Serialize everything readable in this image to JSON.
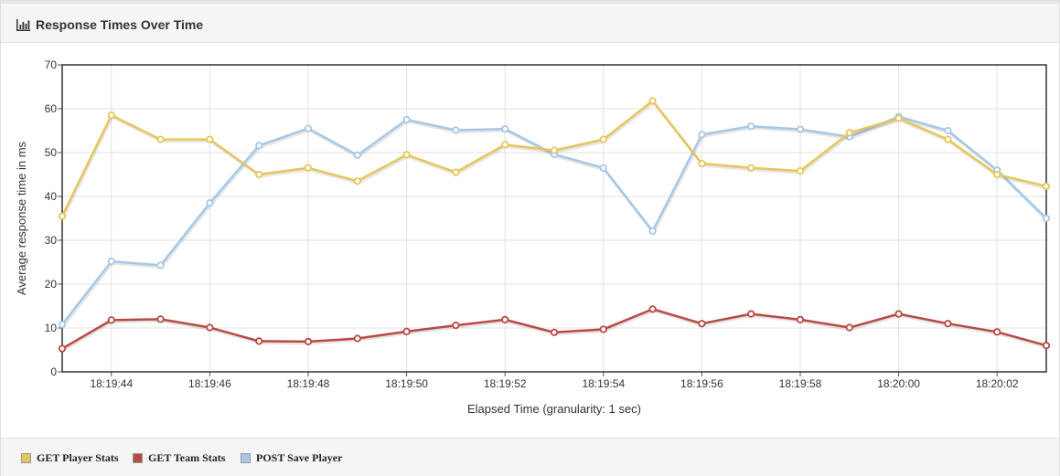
{
  "panel": {
    "title": "Response Times Over Time",
    "icon": "bar-chart-icon"
  },
  "chart_data": {
    "type": "line",
    "title": "Response Times Over Time",
    "xlabel": "Elapsed Time (granularity: 1 sec)",
    "ylabel": "Average response time in ms",
    "ylim": [
      0,
      70
    ],
    "yticks": [
      0,
      10,
      20,
      30,
      40,
      50,
      60,
      70
    ],
    "x": [
      "18:19:43",
      "18:19:44",
      "18:19:45",
      "18:19:46",
      "18:19:47",
      "18:19:48",
      "18:19:49",
      "18:19:50",
      "18:19:51",
      "18:19:52",
      "18:19:53",
      "18:19:54",
      "18:19:55",
      "18:19:56",
      "18:19:57",
      "18:19:58",
      "18:19:59",
      "18:20:00",
      "18:20:01",
      "18:20:02",
      "18:20:03"
    ],
    "xtick_labels": [
      "18:19:44",
      "18:19:46",
      "18:19:48",
      "18:19:50",
      "18:19:52",
      "18:19:54",
      "18:19:56",
      "18:19:58",
      "18:20:00",
      "18:20:02"
    ],
    "grid": true,
    "legend_position": "bottom",
    "series": [
      {
        "name": "GET Player Stats",
        "color": "#e6c65a",
        "values": [
          35.5,
          58.5,
          53,
          53,
          45,
          46.5,
          43.5,
          49.5,
          45.5,
          51.8,
          50.5,
          53,
          61.8,
          47.5,
          46.5,
          45.8,
          54.5,
          57.8,
          53,
          45,
          42.3
        ]
      },
      {
        "name": "GET Team Stats",
        "color": "#b84a44",
        "values": [
          5.3,
          11.8,
          12,
          10.1,
          7,
          6.9,
          7.6,
          9.2,
          10.6,
          11.9,
          9,
          9.7,
          14.3,
          11,
          13.2,
          11.9,
          10.1,
          13.2,
          11,
          9.1,
          6
        ]
      },
      {
        "name": "POST Save Player",
        "color": "#a6c8e6",
        "values": [
          10.8,
          25.2,
          24.3,
          38.5,
          51.6,
          55.5,
          49.4,
          57.5,
          55.1,
          55.4,
          49.6,
          46.5,
          32.1,
          54.1,
          56,
          55.3,
          53.6,
          58.2,
          55,
          46,
          35
        ]
      }
    ]
  }
}
